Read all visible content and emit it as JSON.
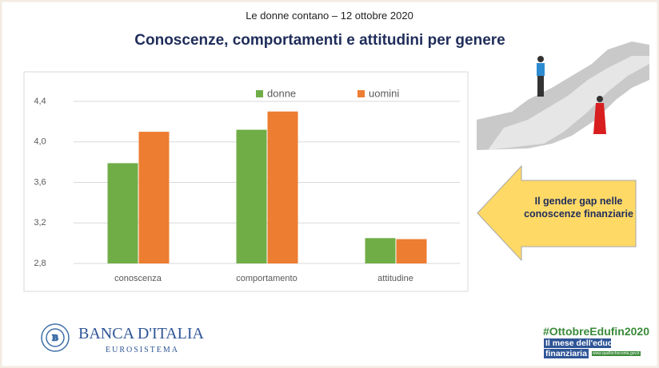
{
  "header": {
    "subtitle": "Le donne contano – 12 ottobre 2020",
    "title": "Conoscenze, comportamenti e attitudini per genere"
  },
  "chart_data": {
    "type": "bar",
    "categories": [
      "conoscenza",
      "comportamento",
      "attitudine"
    ],
    "series": [
      {
        "name": "donne",
        "color": "#70ad47",
        "values": [
          3.79,
          4.12,
          3.05
        ]
      },
      {
        "name": "uomini",
        "color": "#ed7d31",
        "values": [
          4.1,
          4.3,
          3.04
        ]
      }
    ],
    "ylim": [
      2.8,
      4.4
    ],
    "yticks": [
      {
        "value": 2.8,
        "label": "2,8"
      },
      {
        "value": 3.2,
        "label": "3,2"
      },
      {
        "value": 3.6,
        "label": "3,6"
      },
      {
        "value": 4.0,
        "label": "4,0"
      },
      {
        "value": 4.4,
        "label": "4,4"
      }
    ],
    "grid": true,
    "legend": "top"
  },
  "callout": {
    "text": "Il gender gap nelle conoscenze finanziarie"
  },
  "footer": {
    "logo": "BANCA D'ITALIA",
    "logo_sub": "EUROSISTEMA",
    "hashtag": "#OttobreEdufin2020",
    "tagline_1": "Il mese dell'educazione",
    "tagline_2": "finanziaria",
    "url": "www.quellocheconta.gov.it"
  }
}
